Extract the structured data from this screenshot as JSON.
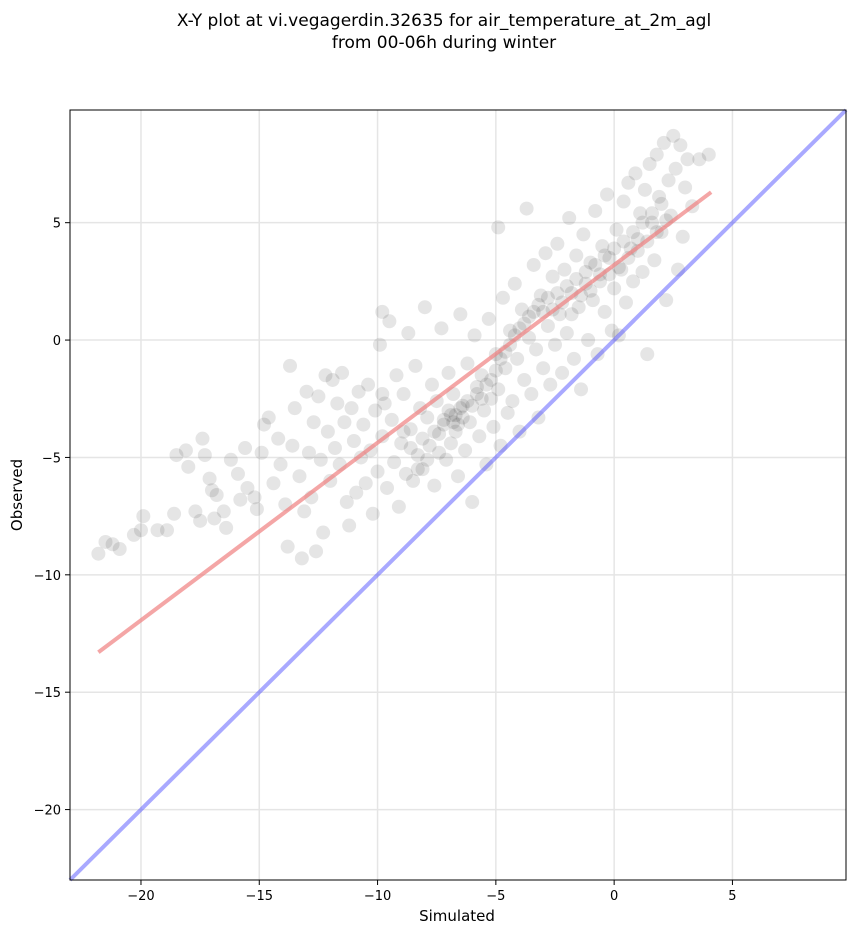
{
  "chart_data": {
    "type": "scatter",
    "title_lines": [
      "X-Y plot at vi.vegagerdin.32635 for air_temperature_at_2m_agl",
      "from 00-06h during winter"
    ],
    "xlabel": "Simulated",
    "ylabel": "Observed",
    "xlim": [
      -23,
      9.8
    ],
    "ylim": [
      -23,
      9.8
    ],
    "xticks": [
      -20,
      -15,
      -10,
      -5,
      0,
      5
    ],
    "yticks": [
      -20,
      -15,
      -10,
      -5,
      0,
      5
    ],
    "xtick_labels": [
      "−20",
      "−15",
      "−10",
      "−5",
      "0",
      "5"
    ],
    "ytick_labels": [
      "−20",
      "−15",
      "−10",
      "−5",
      "0",
      "5"
    ],
    "grid": true,
    "point_color": "#000000",
    "point_alpha": 0.1,
    "fit_line": {
      "color": "#f08080",
      "x": [
        -21.8,
        4.1
      ],
      "y": [
        -13.3,
        6.3
      ]
    },
    "identity_line": {
      "color": "#4040ff",
      "x": [
        -23,
        9.8
      ],
      "y": [
        -23,
        9.8
      ]
    },
    "points": [
      [
        -21.8,
        -9.1
      ],
      [
        -21.5,
        -8.6
      ],
      [
        -21.2,
        -8.7
      ],
      [
        -20.9,
        -8.9
      ],
      [
        -20.3,
        -8.3
      ],
      [
        -20.0,
        -8.1
      ],
      [
        -19.9,
        -7.5
      ],
      [
        -19.3,
        -8.1
      ],
      [
        -18.9,
        -8.1
      ],
      [
        -18.6,
        -7.4
      ],
      [
        -18.5,
        -4.9
      ],
      [
        -18.1,
        -4.7
      ],
      [
        -18.0,
        -5.4
      ],
      [
        -17.7,
        -7.3
      ],
      [
        -17.5,
        -7.7
      ],
      [
        -17.4,
        -4.2
      ],
      [
        -17.3,
        -4.9
      ],
      [
        -17.1,
        -5.9
      ],
      [
        -17.0,
        -6.4
      ],
      [
        -16.9,
        -7.6
      ],
      [
        -16.8,
        -6.6
      ],
      [
        -16.5,
        -7.3
      ],
      [
        -16.4,
        -8.0
      ],
      [
        -16.2,
        -5.1
      ],
      [
        -15.9,
        -5.7
      ],
      [
        -15.8,
        -6.8
      ],
      [
        -15.6,
        -4.6
      ],
      [
        -15.5,
        -6.3
      ],
      [
        -15.2,
        -6.7
      ],
      [
        -15.1,
        -7.2
      ],
      [
        -14.9,
        -4.8
      ],
      [
        -14.8,
        -3.6
      ],
      [
        -14.6,
        -3.3
      ],
      [
        -14.4,
        -6.1
      ],
      [
        -14.2,
        -4.2
      ],
      [
        -14.1,
        -5.3
      ],
      [
        -13.9,
        -7.0
      ],
      [
        -13.8,
        -8.8
      ],
      [
        -13.7,
        -1.1
      ],
      [
        -13.6,
        -4.5
      ],
      [
        -13.5,
        -2.9
      ],
      [
        -13.3,
        -5.8
      ],
      [
        -13.2,
        -9.3
      ],
      [
        -13.1,
        -7.3
      ],
      [
        -13.0,
        -2.2
      ],
      [
        -12.9,
        -4.8
      ],
      [
        -12.8,
        -6.7
      ],
      [
        -12.7,
        -3.5
      ],
      [
        -12.6,
        -9.0
      ],
      [
        -12.5,
        -2.4
      ],
      [
        -12.4,
        -5.1
      ],
      [
        -12.3,
        -8.2
      ],
      [
        -12.2,
        -1.5
      ],
      [
        -12.1,
        -3.9
      ],
      [
        -12.0,
        -6.0
      ],
      [
        -11.9,
        -1.7
      ],
      [
        -11.8,
        -4.6
      ],
      [
        -11.7,
        -2.7
      ],
      [
        -11.6,
        -5.3
      ],
      [
        -11.5,
        -1.4
      ],
      [
        -11.4,
        -3.5
      ],
      [
        -11.3,
        -6.9
      ],
      [
        -11.2,
        -7.9
      ],
      [
        -11.1,
        -2.9
      ],
      [
        -11.0,
        -4.3
      ],
      [
        -10.9,
        -6.5
      ],
      [
        -10.8,
        -2.2
      ],
      [
        -10.7,
        -5.0
      ],
      [
        -10.6,
        -3.6
      ],
      [
        -10.5,
        -6.1
      ],
      [
        -10.4,
        -1.9
      ],
      [
        -10.3,
        -4.7
      ],
      [
        -10.2,
        -7.4
      ],
      [
        -10.1,
        -3.0
      ],
      [
        -10.0,
        -5.6
      ],
      [
        -9.9,
        -0.2
      ],
      [
        -9.8,
        1.2
      ],
      [
        -9.8,
        -4.1
      ],
      [
        -9.7,
        -2.7
      ],
      [
        -9.6,
        -6.3
      ],
      [
        -9.5,
        0.8
      ],
      [
        -9.4,
        -3.4
      ],
      [
        -9.3,
        -5.2
      ],
      [
        -9.2,
        -1.5
      ],
      [
        -9.1,
        -7.1
      ],
      [
        -9.0,
        -4.4
      ],
      [
        -8.9,
        -2.3
      ],
      [
        -8.8,
        -5.7
      ],
      [
        -8.7,
        0.3
      ],
      [
        -8.6,
        -3.8
      ],
      [
        -8.5,
        -6.0
      ],
      [
        -8.4,
        -1.1
      ],
      [
        -8.3,
        -4.9
      ],
      [
        -8.2,
        -2.9
      ],
      [
        -8.1,
        -5.5
      ],
      [
        -8.0,
        1.4
      ],
      [
        -7.9,
        -3.3
      ],
      [
        -7.8,
        -4.5
      ],
      [
        -7.7,
        -1.9
      ],
      [
        -7.6,
        -6.2
      ],
      [
        -7.5,
        -2.6
      ],
      [
        -7.4,
        -4.0
      ],
      [
        -7.3,
        0.5
      ],
      [
        -7.2,
        -3.6
      ],
      [
        -7.1,
        -5.1
      ],
      [
        -7.0,
        -1.4
      ],
      [
        -6.9,
        -3.2
      ],
      [
        -6.9,
        -4.4
      ],
      [
        -6.8,
        -2.3
      ],
      [
        -6.7,
        -3.9
      ],
      [
        -6.6,
        -5.8
      ],
      [
        -6.5,
        1.1
      ],
      [
        -6.4,
        -2.8
      ],
      [
        -6.3,
        -4.7
      ],
      [
        -6.2,
        -1.0
      ],
      [
        -6.1,
        -3.5
      ],
      [
        -6.0,
        -6.9
      ],
      [
        -5.9,
        0.2
      ],
      [
        -5.8,
        -2.0
      ],
      [
        -5.7,
        -4.1
      ],
      [
        -5.6,
        -1.5
      ],
      [
        -5.5,
        -3.0
      ],
      [
        -5.4,
        -5.3
      ],
      [
        -5.3,
        0.9
      ],
      [
        -5.2,
        -2.5
      ],
      [
        -5.1,
        -3.7
      ],
      [
        -5.0,
        -0.6
      ],
      [
        -4.9,
        4.8
      ],
      [
        -4.9,
        -2.1
      ],
      [
        -4.8,
        -4.5
      ],
      [
        -4.7,
        1.8
      ],
      [
        -4.6,
        -1.2
      ],
      [
        -4.5,
        -3.1
      ],
      [
        -4.4,
        0.4
      ],
      [
        -4.3,
        -2.6
      ],
      [
        -4.2,
        2.4
      ],
      [
        -4.1,
        -0.8
      ],
      [
        -4.0,
        -3.9
      ],
      [
        -3.9,
        1.3
      ],
      [
        -3.8,
        -1.7
      ],
      [
        -3.7,
        5.6
      ],
      [
        -3.6,
        0.1
      ],
      [
        -3.5,
        -2.3
      ],
      [
        -3.4,
        3.2
      ],
      [
        -3.3,
        -0.4
      ],
      [
        -3.2,
        -3.3
      ],
      [
        -3.1,
        1.9
      ],
      [
        -3.0,
        -1.2
      ],
      [
        -2.9,
        3.7
      ],
      [
        -2.8,
        0.6
      ],
      [
        -2.7,
        -1.9
      ],
      [
        -2.6,
        2.7
      ],
      [
        -2.5,
        -0.2
      ],
      [
        -2.4,
        4.1
      ],
      [
        -2.3,
        1.1
      ],
      [
        -2.2,
        -1.4
      ],
      [
        -2.1,
        3.0
      ],
      [
        -2.0,
        0.3
      ],
      [
        -1.9,
        5.2
      ],
      [
        -1.8,
        2.0
      ],
      [
        -1.7,
        -0.8
      ],
      [
        -1.6,
        3.6
      ],
      [
        -1.5,
        1.4
      ],
      [
        -1.4,
        -2.1
      ],
      [
        -1.3,
        4.5
      ],
      [
        -1.2,
        2.4
      ],
      [
        -1.1,
        0.0
      ],
      [
        -1.0,
        3.3
      ],
      [
        -0.9,
        1.7
      ],
      [
        -0.8,
        5.5
      ],
      [
        -0.7,
        -0.6
      ],
      [
        -0.6,
        2.8
      ],
      [
        -0.5,
        4.0
      ],
      [
        -0.4,
        1.2
      ],
      [
        -0.3,
        6.2
      ],
      [
        -0.2,
        3.5
      ],
      [
        -0.1,
        0.4
      ],
      [
        0.0,
        2.2
      ],
      [
        0.1,
        4.7
      ],
      [
        0.2,
        0.2
      ],
      [
        0.3,
        3.0
      ],
      [
        0.4,
        5.9
      ],
      [
        0.5,
        1.6
      ],
      [
        0.6,
        6.7
      ],
      [
        0.7,
        3.9
      ],
      [
        0.8,
        2.5
      ],
      [
        0.9,
        7.1
      ],
      [
        1.0,
        4.3
      ],
      [
        1.1,
        5.4
      ],
      [
        1.2,
        2.9
      ],
      [
        1.3,
        6.4
      ],
      [
        1.4,
        -0.6
      ],
      [
        1.5,
        7.5
      ],
      [
        1.6,
        5.0
      ],
      [
        1.7,
        3.4
      ],
      [
        1.8,
        7.9
      ],
      [
        1.9,
        6.1
      ],
      [
        2.0,
        4.6
      ],
      [
        2.1,
        8.4
      ],
      [
        2.2,
        1.7
      ],
      [
        2.3,
        6.8
      ],
      [
        2.4,
        5.3
      ],
      [
        2.5,
        8.7
      ],
      [
        2.6,
        7.3
      ],
      [
        2.7,
        3.0
      ],
      [
        2.8,
        8.3
      ],
      [
        2.9,
        4.4
      ],
      [
        3.0,
        6.5
      ],
      [
        3.1,
        7.7
      ],
      [
        3.3,
        5.7
      ],
      [
        3.6,
        7.7
      ],
      [
        4.0,
        7.9
      ],
      [
        -9.8,
        -2.3
      ],
      [
        -8.9,
        -3.9
      ],
      [
        -8.6,
        -4.6
      ],
      [
        -8.3,
        -5.5
      ],
      [
        -8.1,
        -4.2
      ],
      [
        -7.9,
        -5.1
      ],
      [
        -7.6,
        -3.9
      ],
      [
        -7.4,
        -4.8
      ],
      [
        -7.2,
        -3.4
      ],
      [
        -7.0,
        -3.0
      ],
      [
        -6.8,
        -3.5
      ],
      [
        -6.7,
        -3.2
      ],
      [
        -6.6,
        -3.6
      ],
      [
        -6.5,
        -2.9
      ],
      [
        -6.4,
        -3.3
      ],
      [
        -6.2,
        -2.6
      ],
      [
        -6.0,
        -2.8
      ],
      [
        -5.8,
        -2.3
      ],
      [
        -5.6,
        -2.5
      ],
      [
        -5.4,
        -1.9
      ],
      [
        -5.2,
        -1.7
      ],
      [
        -5.0,
        -1.3
      ],
      [
        -4.8,
        -0.8
      ],
      [
        -4.6,
        -0.5
      ],
      [
        -4.4,
        -0.2
      ],
      [
        -4.2,
        0.2
      ],
      [
        -4.0,
        0.5
      ],
      [
        -3.8,
        0.7
      ],
      [
        -3.6,
        1.0
      ],
      [
        -3.4,
        1.2
      ],
      [
        -3.2,
        1.5
      ],
      [
        -3.0,
        1.2
      ],
      [
        -2.8,
        1.8
      ],
      [
        -2.6,
        1.3
      ],
      [
        -2.4,
        2.0
      ],
      [
        -2.2,
        1.6
      ],
      [
        -2.0,
        2.3
      ],
      [
        -1.8,
        1.1
      ],
      [
        -1.6,
        2.6
      ],
      [
        -1.4,
        1.9
      ],
      [
        -1.2,
        2.9
      ],
      [
        -1.0,
        2.1
      ],
      [
        -0.8,
        3.2
      ],
      [
        -0.6,
        2.5
      ],
      [
        -0.4,
        3.6
      ],
      [
        -0.2,
        2.8
      ],
      [
        0.0,
        3.9
      ],
      [
        0.2,
        3.1
      ],
      [
        0.4,
        4.2
      ],
      [
        0.6,
        3.5
      ],
      [
        0.8,
        4.6
      ],
      [
        1.0,
        3.8
      ],
      [
        1.2,
        5.0
      ],
      [
        1.4,
        4.2
      ],
      [
        1.6,
        5.4
      ],
      [
        1.8,
        4.6
      ],
      [
        2.0,
        5.8
      ],
      [
        2.2,
        5.1
      ]
    ]
  }
}
